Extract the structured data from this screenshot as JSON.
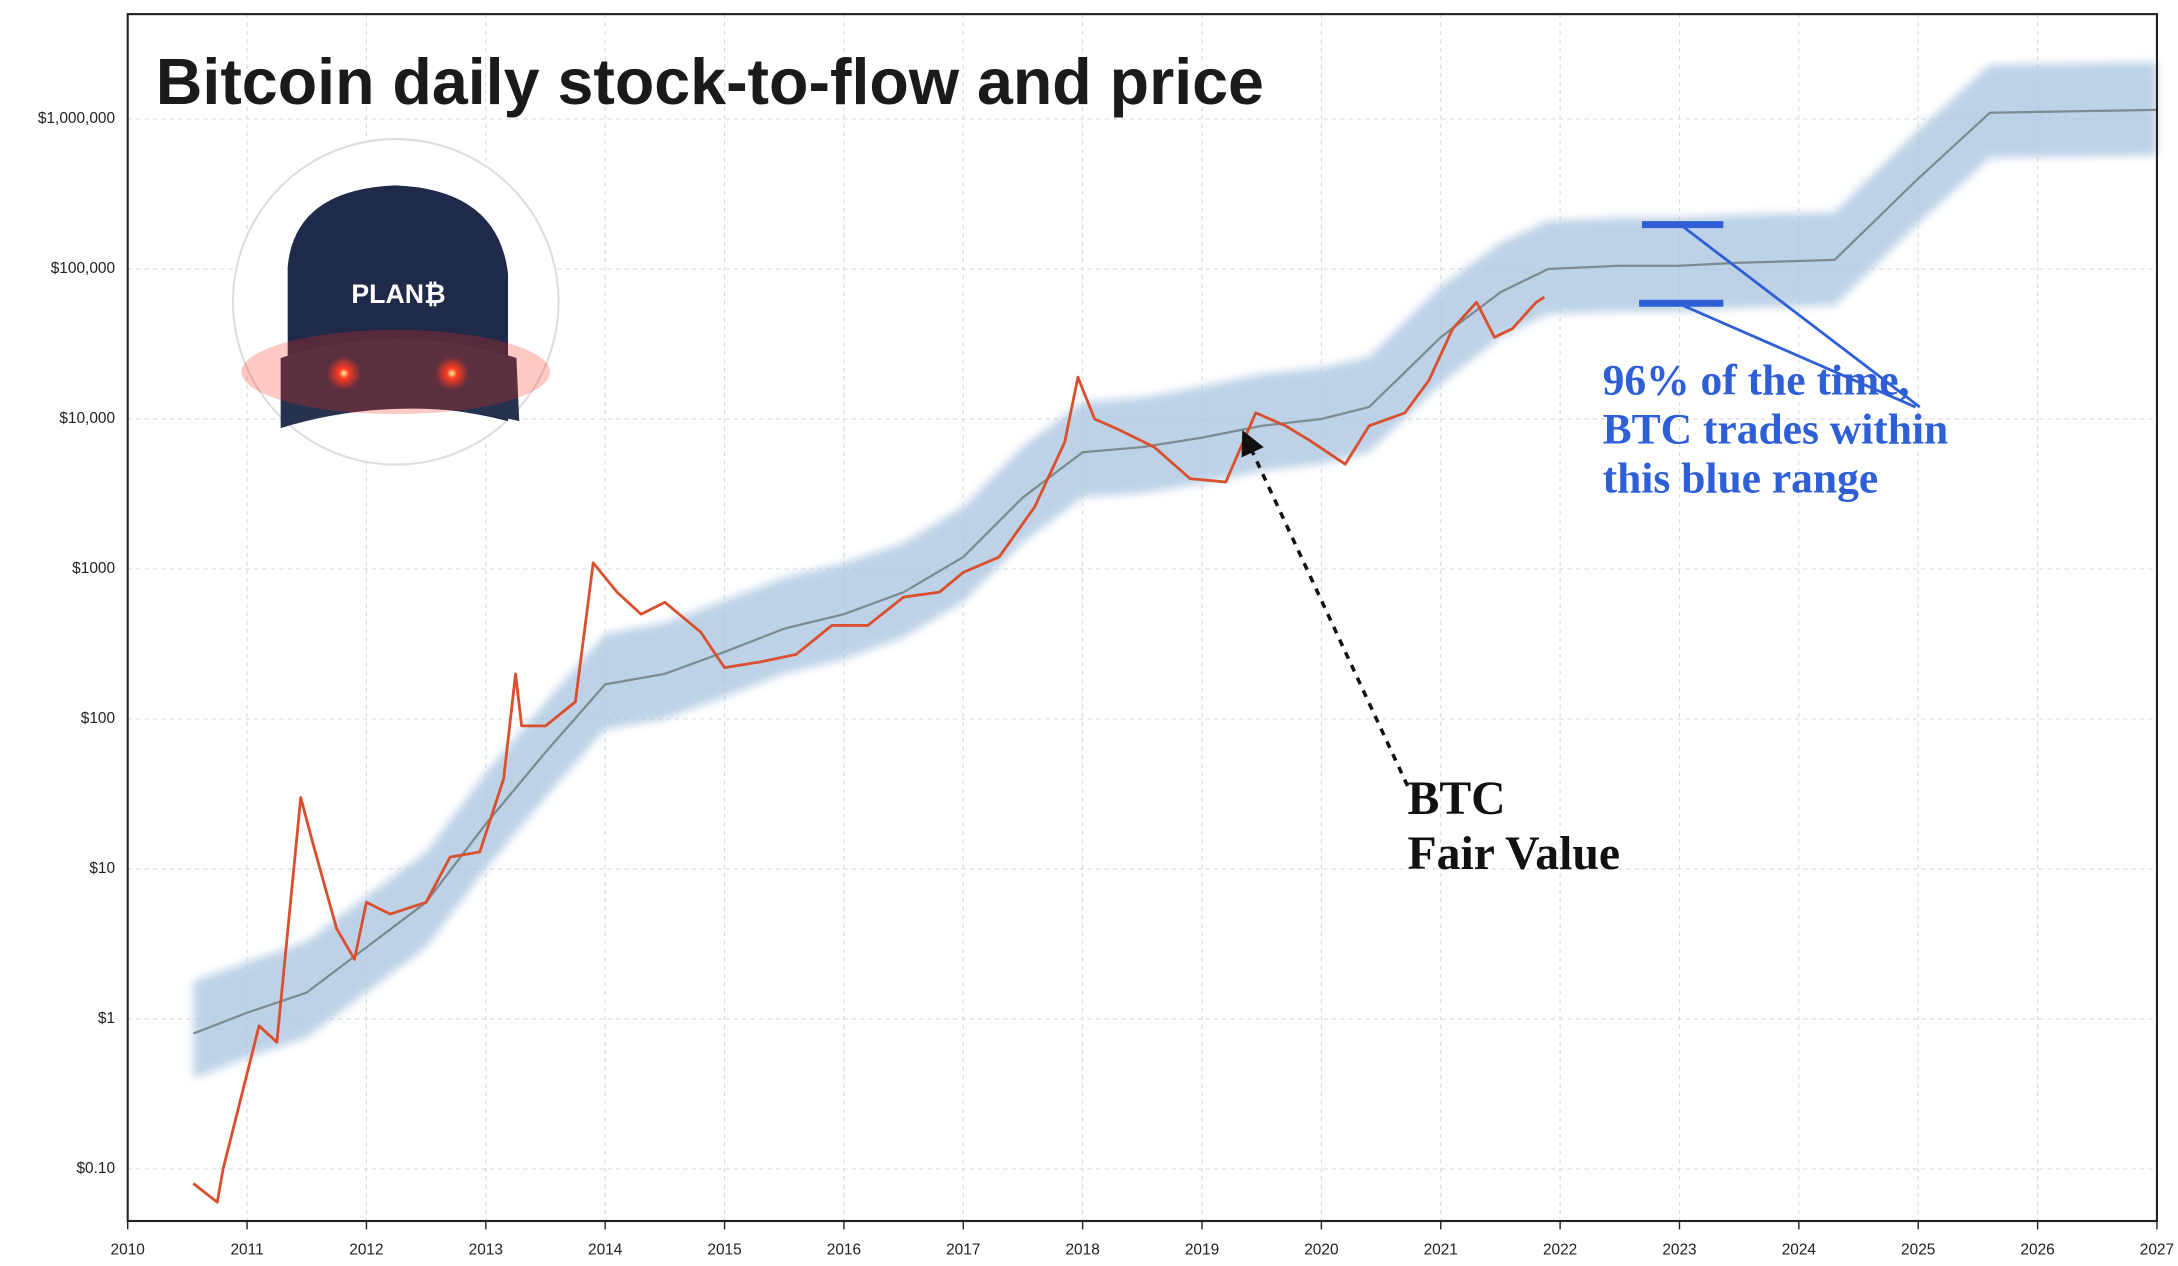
{
  "chart_data": {
    "type": "line",
    "title": "Bitcoin daily stock-to-flow and price",
    "logo_text": "PLAN₿",
    "yscale": "log",
    "grid": true,
    "xlim": [
      2010,
      2027
    ],
    "xticks": [
      2010,
      2011,
      2012,
      2013,
      2014,
      2015,
      2016,
      2017,
      2018,
      2019,
      2020,
      2021,
      2022,
      2023,
      2024,
      2025,
      2026,
      2027
    ],
    "ylim": [
      0.045,
      5000000
    ],
    "yticks": [
      {
        "value": 0.1,
        "label": "$0.10"
      },
      {
        "value": 1,
        "label": "$1"
      },
      {
        "value": 10,
        "label": "$10"
      },
      {
        "value": 100,
        "label": "$100"
      },
      {
        "value": 1000,
        "label": "$1000"
      },
      {
        "value": 10000,
        "label": "$10,000"
      },
      {
        "value": 100000,
        "label": "$100,000"
      },
      {
        "value": 1000000,
        "label": "$1,000,000"
      }
    ],
    "series": [
      {
        "type": "band",
        "color": "#a9c4e0",
        "x": [
          2010.55,
          2011,
          2011.5,
          2012,
          2012.5,
          2013,
          2013.5,
          2014,
          2014.5,
          2015,
          2015.5,
          2016,
          2016.5,
          2017,
          2017.5,
          2018,
          2018.5,
          2019,
          2019.5,
          2020,
          2020.4,
          2021,
          2021.5,
          2021.9,
          2022.5,
          2023,
          2023.5,
          2024.3,
          2025,
          2025.6,
          2027
        ],
        "values": [
          1.8,
          2.4,
          3.3,
          6.6,
          13,
          44,
          130,
          370,
          440,
          620,
          880,
          1100,
          1500,
          2600,
          6600,
          13000,
          14000,
          16500,
          20000,
          22000,
          26000,
          77000,
          150000,
          210000,
          220000,
          220000,
          230000,
          240000,
          850000,
          2300000,
          2400000
        ],
        "lower": [
          0.4,
          0.55,
          0.75,
          1.5,
          3,
          10,
          30,
          85,
          100,
          140,
          200,
          250,
          350,
          600,
          1500,
          3000,
          3200,
          3700,
          4500,
          5000,
          6000,
          17000,
          35000,
          50000,
          52000,
          52000,
          55000,
          57000,
          200000,
          550000,
          570000
        ]
      },
      {
        "type": "line",
        "color": "#7d8a90",
        "x": [
          2010.55,
          2011,
          2011.5,
          2012,
          2012.5,
          2013,
          2013.5,
          2014,
          2014.5,
          2015,
          2015.5,
          2016,
          2016.5,
          2017,
          2017.5,
          2018,
          2018.5,
          2019,
          2019.5,
          2020,
          2020.4,
          2021,
          2021.5,
          2021.9,
          2022.5,
          2023,
          2023.5,
          2024.3,
          2025,
          2025.6,
          2027
        ],
        "values": [
          0.8,
          1.1,
          1.5,
          3,
          6,
          20,
          60,
          170,
          200,
          280,
          400,
          500,
          700,
          1200,
          3000,
          6000,
          6500,
          7500,
          9000,
          10000,
          12000,
          35000,
          70000,
          100000,
          105000,
          105000,
          110000,
          115000,
          400000,
          1100000,
          1150000
        ]
      },
      {
        "type": "line",
        "color": "#d9502e",
        "x": [
          2010.55,
          2010.75,
          2010.8,
          2010.95,
          2011.1,
          2011.25,
          2011.45,
          2011.55,
          2011.75,
          2011.9,
          2012.0,
          2012.2,
          2012.5,
          2012.7,
          2012.95,
          2013.15,
          2013.25,
          2013.3,
          2013.5,
          2013.75,
          2013.9,
          2014.1,
          2014.3,
          2014.5,
          2014.8,
          2015.0,
          2015.3,
          2015.6,
          2015.9,
          2016.2,
          2016.5,
          2016.8,
          2017.0,
          2017.3,
          2017.6,
          2017.85,
          2017.96,
          2018.1,
          2018.3,
          2018.6,
          2018.9,
          2019.2,
          2019.45,
          2019.7,
          2019.9,
          2020.2,
          2020.4,
          2020.7,
          2020.9,
          2021.1,
          2021.3,
          2021.45,
          2021.6,
          2021.8,
          2021.87
        ],
        "values": [
          0.08,
          0.06,
          0.1,
          0.3,
          0.9,
          0.7,
          30,
          15,
          4,
          2.5,
          6,
          5,
          6,
          12,
          13,
          40,
          200,
          90,
          90,
          130,
          1100,
          700,
          500,
          600,
          380,
          220,
          240,
          270,
          420,
          420,
          650,
          700,
          950,
          1200,
          2600,
          7000,
          19000,
          10000,
          8500,
          6500,
          4000,
          3800,
          11000,
          9000,
          7200,
          5000,
          9000,
          11000,
          18000,
          40000,
          60000,
          35000,
          40000,
          60000,
          65000
        ]
      }
    ],
    "annotations": {
      "range_note": [
        "96% of the time,",
        "BTC trades within",
        "this blue range"
      ],
      "fair_value_note": [
        "BTC",
        "Fair Value"
      ]
    }
  }
}
